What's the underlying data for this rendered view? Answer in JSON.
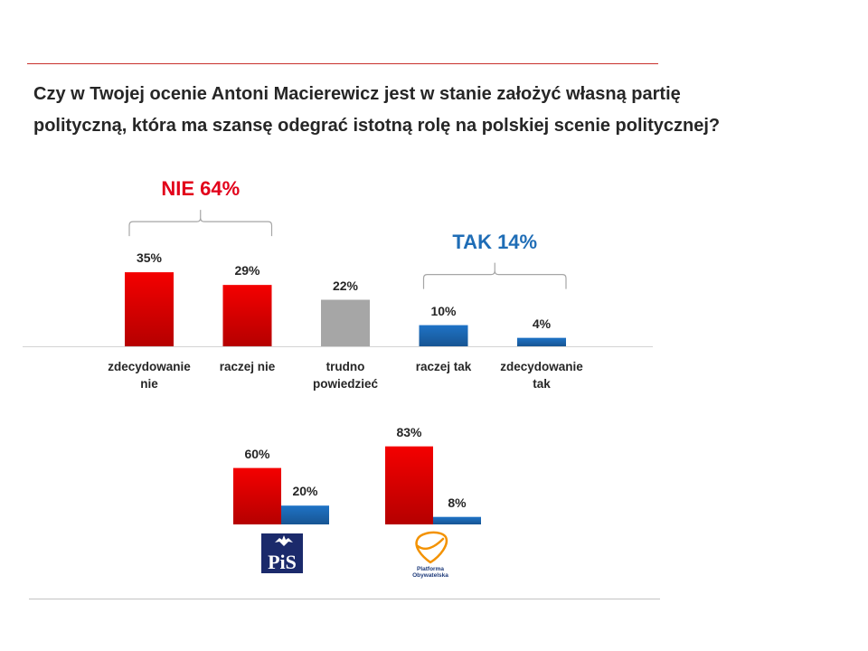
{
  "colors": {
    "top_divider": "#c9302c",
    "bottom_divider": "#c3c3c3",
    "text": "#262626",
    "bracket": "#a6a6a6",
    "baseline": "#d4d4d4",
    "pis_logo_bg": "#1b2a6b",
    "po_logo_orange": "#f39200",
    "po_logo_text": "#1d3a7a"
  },
  "chart_data": [
    {
      "type": "bar",
      "title": "Czy w Twojej ocenie Antoni Macierewicz jest w stanie założyć własną partię polityczną, która ma szansę odegrać istotną rolę na polskiej scenie politycznej?",
      "categories": [
        "zdecydowanie nie",
        "raczej nie",
        "trudno powiedzieć",
        "raczej tak",
        "zdecydowanie tak"
      ],
      "values": [
        35,
        29,
        22,
        10,
        4
      ],
      "data_labels": [
        "35%",
        "29%",
        "22%",
        "10%",
        "4%"
      ],
      "bar_colors": [
        "#f40000",
        "#f40000",
        "#a6a6a6",
        "#1f73c6",
        "#1f73c6"
      ],
      "grid": false,
      "annotations": [
        {
          "text": "NIE 64%",
          "color": "#e2001a",
          "categories": [
            "zdecydowanie nie",
            "raczej nie"
          ]
        },
        {
          "text": "TAK 14%",
          "color": "#1f6db6",
          "categories": [
            "raczej tak",
            "zdecydowanie tak"
          ]
        }
      ]
    },
    {
      "type": "bar",
      "categories": [
        "PiS",
        "Platforma Obywatelska"
      ],
      "series": [
        {
          "values": [
            60,
            83
          ],
          "data_labels": [
            "60%",
            "83%"
          ],
          "color": "#f40000"
        },
        {
          "values": [
            20,
            8
          ],
          "data_labels": [
            "20%",
            "8%"
          ],
          "color": "#1f73c6"
        }
      ],
      "grid": false
    }
  ]
}
